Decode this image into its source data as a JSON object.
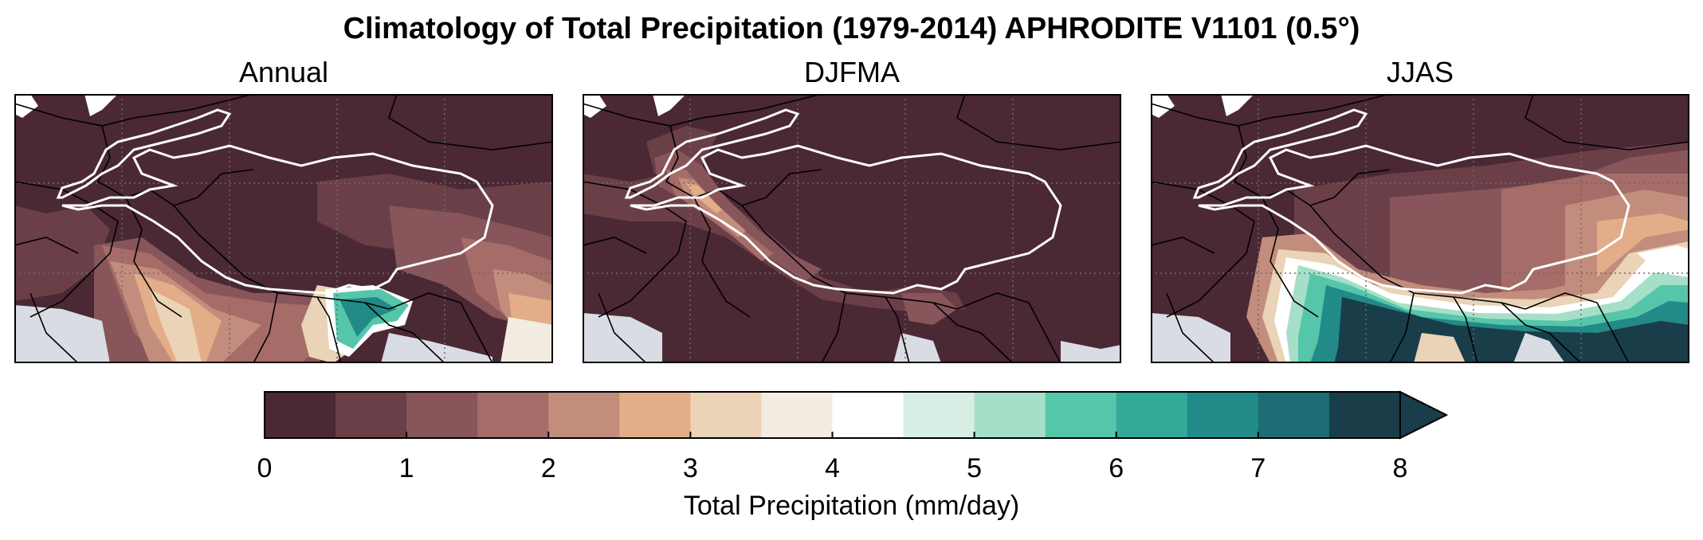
{
  "title": "Climatology of Total Precipitation (1979-2014) APHRODITE V1101 (0.5°)",
  "panels": [
    {
      "label": "Annual"
    },
    {
      "label": "DJFMA"
    },
    {
      "label": "JJAS"
    }
  ],
  "colorbar": {
    "label": "Total Precipitation (mm/day)",
    "ticks": [
      "0",
      "1",
      "2",
      "3",
      "4",
      "5",
      "6",
      "7",
      "8"
    ],
    "levels": [
      0,
      0.5,
      1,
      1.5,
      2,
      2.5,
      3,
      3.5,
      4,
      4.5,
      5,
      5.5,
      6,
      6.5,
      7,
      7.5,
      8
    ],
    "colors": [
      "#4a2834",
      "#6b3f47",
      "#87555a",
      "#a56c68",
      "#c28d7c",
      "#e2ad88",
      "#ead3b6",
      "#f3ece0",
      "#ffffff",
      "#d6eee3",
      "#a6dfc8",
      "#55c6aa",
      "#33a99a",
      "#228a87",
      "#1c6e74",
      "#1a3d4a"
    ],
    "extend": "max"
  },
  "map_colors": {
    "ocean": "#d9dce3",
    "boundary": "#000000",
    "contour_3000m": "#ffffff",
    "grid": "#6a6a6a"
  }
}
